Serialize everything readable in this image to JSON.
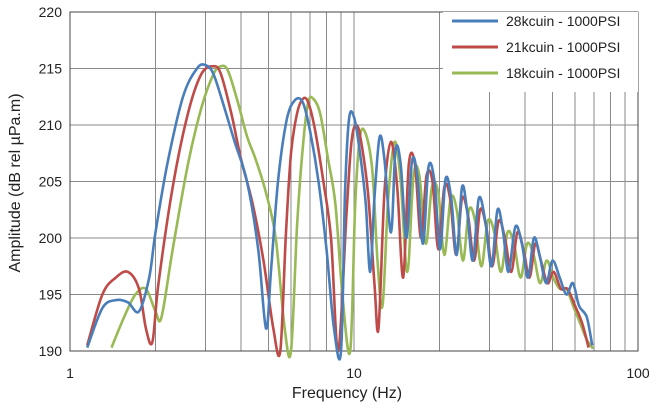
{
  "chart_data": {
    "type": "line",
    "title": "",
    "xlabel": "Frequency (Hz)",
    "ylabel": "Amplitude (dB rel µPa.m)",
    "xscale": "log",
    "xlim": [
      1,
      100
    ],
    "ylim": [
      190,
      220
    ],
    "x_ticks": [
      1,
      10,
      100
    ],
    "y_ticks": [
      190,
      195,
      200,
      205,
      210,
      215,
      220
    ],
    "grid": {
      "vertical": "log minor lines",
      "horizontal": "major"
    },
    "legend": "top-right",
    "series": [
      {
        "name": "28kcuin - 1000PSI",
        "color": "#4a7ebb",
        "x": [
          1.15,
          1.3,
          1.45,
          1.6,
          1.75,
          1.9,
          2.0,
          2.2,
          2.5,
          2.8,
          3.0,
          3.2,
          3.5,
          3.8,
          4.2,
          4.6,
          4.9,
          5.1,
          5.4,
          5.8,
          6.2,
          6.6,
          7.0,
          7.5,
          8.0,
          8.5,
          9.0,
          9.3,
          9.6,
          10.0,
          10.5,
          11.0,
          11.4,
          11.8,
          12.3,
          12.8,
          13.5,
          14.0,
          14.6,
          15.3,
          16.0,
          16.7,
          17.5,
          18.3,
          19.2,
          20.1,
          21.0,
          22.0,
          23.0,
          24.0,
          25.0,
          26.2,
          27.5,
          29.0,
          30.5,
          32.0,
          33.5,
          35.0,
          37.0,
          39.0,
          41.0,
          43.0,
          45.0,
          47.5,
          50.0,
          53.0,
          56.0,
          59.0,
          62.0,
          66.0,
          69.0
        ],
        "y": [
          190.3,
          193.8,
          194.5,
          194.3,
          193.5,
          196.5,
          200.5,
          206.5,
          212.5,
          215.0,
          215.3,
          214.5,
          211.5,
          208.5,
          205.0,
          199.0,
          192.0,
          197.0,
          205.0,
          210.5,
          212.2,
          212.0,
          209.5,
          205.0,
          199.0,
          192.0,
          190.0,
          204.0,
          210.5,
          210.7,
          207.5,
          203.0,
          197.0,
          203.5,
          208.9,
          207.0,
          200.5,
          207.8,
          206.5,
          200.0,
          206.8,
          205.5,
          199.5,
          206.3,
          205.0,
          199.0,
          205.2,
          203.5,
          198.5,
          204.5,
          202.5,
          198.0,
          203.5,
          201.5,
          197.5,
          202.5,
          200.5,
          197.0,
          201.0,
          199.5,
          196.5,
          200.0,
          198.5,
          196.0,
          198.0,
          196.5,
          195.0,
          196.0,
          194.0,
          193.0,
          190.5
        ]
      },
      {
        "name": "21kcuin - 1000PSI",
        "color": "#be4b48",
        "x": [
          1.15,
          1.3,
          1.45,
          1.6,
          1.75,
          1.85,
          1.95,
          2.05,
          2.3,
          2.6,
          2.9,
          3.2,
          3.4,
          3.7,
          4.0,
          4.4,
          4.8,
          5.2,
          5.5,
          5.75,
          6.0,
          6.3,
          6.6,
          6.9,
          7.3,
          7.8,
          8.3,
          8.8,
          9.4,
          9.8,
          10.2,
          10.6,
          11.2,
          11.8,
          12.2,
          12.8,
          13.5,
          14.2,
          14.9,
          15.6,
          16.4,
          17.2,
          18.0,
          18.9,
          19.8,
          20.8,
          21.8,
          22.9,
          24.0,
          25.2,
          26.5,
          27.8,
          29.2,
          30.7,
          32.3,
          34.0,
          35.8,
          37.6,
          39.5,
          41.5,
          43.5,
          45.5,
          48.0,
          50.5,
          53.5,
          56.5,
          60.0,
          63.5,
          67.0
        ],
        "y": [
          190.5,
          195.0,
          196.5,
          197.0,
          195.5,
          192.0,
          190.8,
          196.0,
          204.5,
          211.0,
          214.5,
          215.2,
          214.5,
          211.0,
          207.0,
          203.0,
          198.0,
          192.0,
          190.0,
          200.0,
          207.5,
          211.0,
          212.3,
          212.0,
          209.5,
          205.0,
          200.0,
          190.0,
          202.0,
          208.5,
          210.0,
          208.5,
          204.0,
          196.0,
          192.0,
          204.0,
          208.5,
          204.5,
          196.5,
          206.5,
          206.5,
          200.0,
          205.5,
          205.0,
          199.0,
          204.5,
          203.5,
          198.5,
          203.5,
          202.0,
          198.0,
          202.5,
          201.0,
          197.5,
          201.5,
          200.0,
          197.0,
          200.5,
          199.0,
          196.5,
          199.5,
          198.0,
          196.0,
          197.0,
          195.5,
          195.5,
          194.0,
          192.5,
          190.3
        ]
      },
      {
        "name": "18kcuin - 1000PSI",
        "color": "#98b954",
        "x": [
          1.4,
          1.55,
          1.7,
          1.85,
          2.0,
          2.1,
          2.3,
          2.6,
          2.9,
          3.2,
          3.4,
          3.6,
          3.9,
          4.2,
          4.5,
          4.9,
          5.3,
          5.7,
          6.0,
          6.3,
          6.6,
          6.9,
          7.2,
          7.6,
          8.1,
          8.6,
          9.1,
          9.7,
          10.1,
          10.5,
          11.0,
          11.6,
          12.1,
          12.6,
          13.2,
          13.9,
          14.6,
          15.4,
          16.2,
          17.0,
          17.9,
          18.8,
          19.8,
          20.8,
          21.9,
          23.0,
          24.2,
          25.4,
          26.7,
          28.1,
          29.6,
          31.2,
          32.9,
          34.7,
          36.6,
          38.6,
          40.7,
          42.9,
          45.2,
          47.7,
          50.3,
          53.1,
          56.0,
          59.1,
          62.5,
          66.0,
          69.5
        ],
        "y": [
          190.3,
          193.0,
          195.0,
          195.5,
          193.5,
          193.0,
          199.0,
          206.5,
          211.5,
          214.5,
          215.2,
          214.8,
          212.0,
          209.0,
          207.0,
          204.0,
          200.0,
          192.0,
          190.0,
          201.0,
          208.0,
          212.0,
          212.3,
          211.0,
          207.0,
          203.0,
          195.0,
          190.0,
          203.0,
          209.0,
          209.2,
          206.0,
          198.0,
          194.0,
          203.5,
          208.5,
          205.0,
          197.0,
          205.5,
          205.5,
          199.5,
          204.5,
          204.0,
          198.5,
          203.5,
          202.5,
          198.0,
          202.5,
          201.5,
          197.5,
          201.5,
          200.5,
          197.0,
          200.5,
          199.5,
          196.5,
          199.5,
          198.5,
          196.0,
          198.0,
          196.5,
          195.5,
          195.5,
          194.0,
          192.5,
          191.0,
          190.2
        ]
      }
    ]
  }
}
